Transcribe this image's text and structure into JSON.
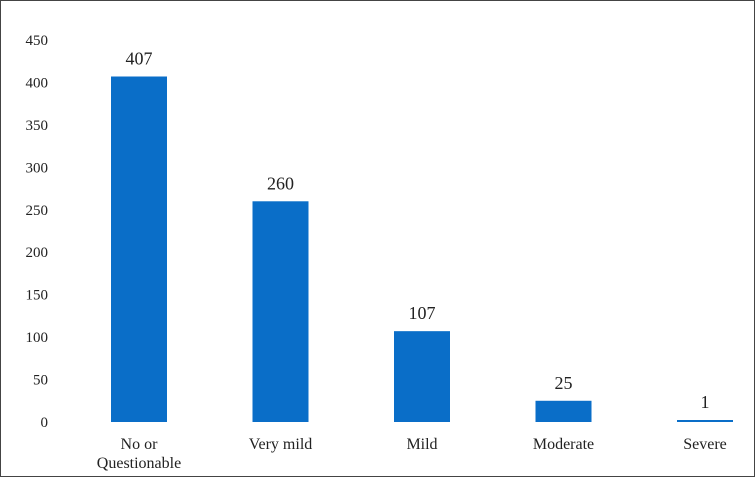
{
  "chart_data": {
    "type": "bar",
    "categories": [
      "No or Questionable",
      "Very mild",
      "Mild",
      "Moderate",
      "Severe"
    ],
    "category_lines": [
      [
        "No or",
        "Questionable"
      ],
      [
        "Very mild"
      ],
      [
        "Mild"
      ],
      [
        "Moderate"
      ],
      [
        "Severe"
      ]
    ],
    "values": [
      407,
      260,
      107,
      25,
      1
    ],
    "data_labels": [
      "407",
      "260",
      "107",
      "25",
      "1"
    ],
    "ylim": [
      0,
      450
    ],
    "yticks": [
      0,
      50,
      100,
      150,
      200,
      250,
      300,
      350,
      400,
      450
    ],
    "title": "",
    "xlabel": "",
    "ylabel": "",
    "grid": false,
    "legend": "none",
    "bar_color": "#0a6ec8"
  }
}
